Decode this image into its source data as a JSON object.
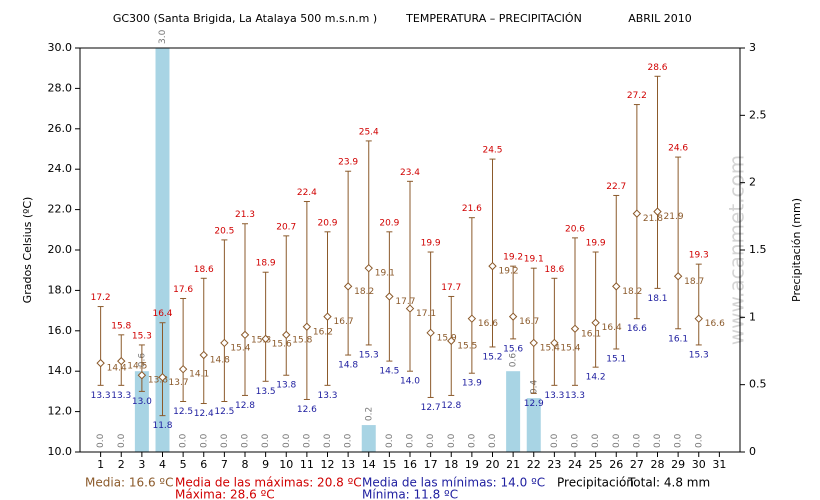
{
  "chart_data": {
    "type": "hilo-bar",
    "title": "GC300 (Santa Brigida, La Atalaya 500 m.s.n.m )",
    "subtitle": "TEMPERATURA – PRECIPITACIÓN",
    "period": "ABRIL 2010",
    "y_label": "Grados Celsius (ºC)",
    "y2_label": "Precipitación (mm)",
    "watermark": "www.acanmet.com",
    "categories": [
      1,
      2,
      3,
      4,
      5,
      6,
      7,
      8,
      9,
      10,
      11,
      12,
      13,
      14,
      15,
      16,
      17,
      18,
      19,
      20,
      21,
      22,
      23,
      24,
      25,
      26,
      27,
      28,
      29,
      30,
      31
    ],
    "ylim": [
      10,
      30
    ],
    "yticks": [
      {
        "value": 10,
        "label": "10.0"
      },
      {
        "value": 12,
        "label": "12.0"
      },
      {
        "value": 14,
        "label": "14.0"
      },
      {
        "value": 16,
        "label": "16.0"
      },
      {
        "value": 18,
        "label": "18.0"
      },
      {
        "value": 20,
        "label": "20.0"
      },
      {
        "value": 22,
        "label": "22.0"
      },
      {
        "value": 24,
        "label": "24.0"
      },
      {
        "value": 26,
        "label": "26.0"
      },
      {
        "value": 28,
        "label": "28.0"
      },
      {
        "value": 30,
        "label": "30.0"
      }
    ],
    "y2lim": [
      0,
      3
    ],
    "y2ticks": [
      0,
      0.5,
      1,
      1.5,
      2,
      2.5,
      3
    ],
    "series": {
      "max": {
        "color": "#d00000",
        "values": [
          17.2,
          15.8,
          15.3,
          16.4,
          17.6,
          18.6,
          20.5,
          21.3,
          18.9,
          20.7,
          22.4,
          20.9,
          23.9,
          25.4,
          20.9,
          23.4,
          19.9,
          17.7,
          21.6,
          24.5,
          19.2,
          19.1,
          18.6,
          20.6,
          19.9,
          22.7,
          27.2,
          28.6,
          24.6,
          19.3,
          null
        ]
      },
      "mean": {
        "color": "#8b5a2b",
        "values": [
          14.4,
          14.5,
          13.8,
          13.7,
          14.1,
          14.8,
          15.4,
          15.8,
          15.6,
          15.8,
          16.2,
          16.7,
          18.2,
          19.1,
          17.7,
          17.1,
          15.9,
          15.5,
          16.6,
          19.2,
          16.7,
          15.4,
          15.4,
          16.1,
          16.4,
          18.2,
          21.8,
          21.9,
          18.7,
          16.6,
          null
        ]
      },
      "min": {
        "color": "#2020a0",
        "values": [
          13.3,
          13.3,
          13.0,
          11.8,
          12.5,
          12.4,
          12.5,
          12.8,
          13.5,
          13.8,
          12.6,
          13.3,
          14.8,
          15.3,
          14.5,
          14.0,
          12.7,
          12.8,
          13.9,
          15.2,
          15.6,
          12.9,
          13.3,
          13.3,
          14.2,
          15.1,
          16.6,
          18.1,
          16.1,
          15.3,
          null
        ],
        "value_labels": [
          "13.3",
          "13.3",
          "13.0",
          "11.8",
          "12.5",
          "12.4",
          "12.5",
          "12.8",
          "13.5",
          "13.8",
          "12.6",
          "13.3",
          "14.8",
          "15.3",
          "14.5",
          "14.0",
          "12.7",
          "12.8",
          "13.9",
          "15.2",
          "15.6",
          "12.9",
          "13.3",
          "13.3",
          "14.2",
          "15.1",
          "16.6",
          "18.1",
          "16.1",
          "15.3",
          null
        ]
      },
      "precipitation": {
        "color": "#a8d4e4",
        "axis": "y2",
        "values": [
          0,
          0,
          0.6,
          3,
          0,
          0,
          0,
          0,
          0,
          0,
          0,
          0,
          0,
          0.2,
          0,
          0,
          0,
          0,
          0,
          0,
          0.6,
          0.4,
          0,
          0,
          0,
          0,
          0,
          0,
          0,
          0,
          null
        ],
        "value_labels": [
          "0.0",
          "0.0",
          "0.6",
          "3.0",
          "0.0",
          "0.0",
          "0.0",
          "0.0",
          "0.0",
          "0.0",
          "0.0",
          "0.0",
          "0.0",
          "0.2",
          "0.0",
          "0.0",
          "0.0",
          "0.0",
          "0.0",
          "0.0",
          "0.6",
          "0.4",
          "0.0",
          "0.0",
          "0.0",
          "0.0",
          "0.0",
          "0.0",
          "0.0",
          "0.0",
          null
        ]
      }
    },
    "footer": [
      {
        "text": "Media: 16.6 ºC",
        "color": "#8b5a2b"
      },
      {
        "text": "Media de las máximas: 20.8 ºC",
        "color": "#d00000"
      },
      {
        "text": "Máxima: 28.6 ºC",
        "color": "#d00000"
      },
      {
        "text": "Media de las mínimas: 14.0 ºC",
        "color": "#2020a0"
      },
      {
        "text": "Mínima: 11.8 ºC",
        "color": "#2020a0"
      },
      {
        "text": "Precipitación",
        "color": "#000000"
      },
      {
        "text": "Total: 4.8 mm",
        "color": "#000000"
      }
    ]
  }
}
